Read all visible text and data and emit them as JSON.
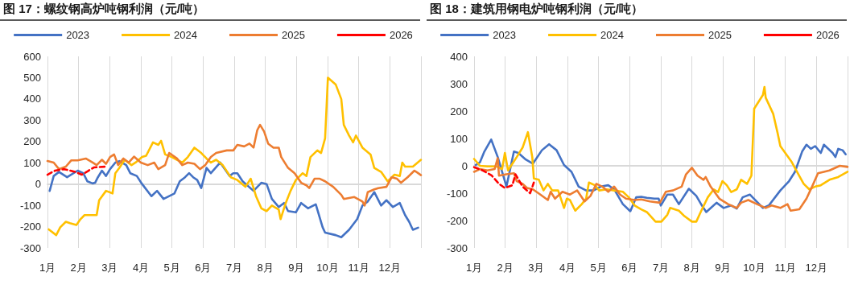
{
  "chart_data": [
    {
      "type": "line",
      "title": "图 17：螺纹钢高炉吨钢利润（元/吨）",
      "xlim": [
        1,
        13
      ],
      "xticks": [
        {
          "value": 1,
          "label": "1月"
        },
        {
          "value": 2,
          "label": "2月"
        },
        {
          "value": 3,
          "label": "3月"
        },
        {
          "value": 4,
          "label": "4月"
        },
        {
          "value": 5,
          "label": "5月"
        },
        {
          "value": 6,
          "label": "6月"
        },
        {
          "value": 7,
          "label": "7月"
        },
        {
          "value": 8,
          "label": "8月"
        },
        {
          "value": 9,
          "label": "9月"
        },
        {
          "value": 10,
          "label": "10月"
        },
        {
          "value": 11,
          "label": "11月"
        },
        {
          "value": 12,
          "label": "12月"
        },
        {
          "value": 13,
          "label": null
        }
      ],
      "ylim": [
        -300,
        600
      ],
      "yticks": [
        -300,
        -200,
        -100,
        0,
        100,
        200,
        300,
        400,
        500,
        600
      ],
      "grid": "x",
      "legend": "top",
      "marker": "none",
      "line_style": "solid",
      "series": [
        {
          "name": "2023",
          "color": "#4472c4",
          "x": [
            1.07,
            1.2,
            1.37,
            1.63,
            1.97,
            2.15,
            2.28,
            2.45,
            2.53,
            2.62,
            2.75,
            2.88,
            3.01,
            3.18,
            3.31,
            3.53,
            3.66,
            3.87,
            4.04,
            4.34,
            4.52,
            4.73,
            5.08,
            5.25,
            5.42,
            5.55,
            5.68,
            5.81,
            5.94,
            6.11,
            6.25,
            6.55,
            6.85,
            6.97,
            7.1,
            7.27,
            7.62,
            7.87,
            8.04,
            8.21,
            8.43,
            8.6,
            8.73,
            8.98,
            9.15,
            9.37,
            9.62,
            9.84,
            9.92,
            10.26,
            10.44,
            10.69,
            10.95,
            11.12,
            11.29,
            11.5,
            11.72,
            11.89,
            12.1,
            12.32,
            12.49,
            12.62,
            12.74,
            12.91
          ],
          "values": [
            -32,
            38,
            57,
            32,
            63,
            51,
            13,
            3,
            6,
            32,
            63,
            38,
            70,
            101,
            108,
            89,
            51,
            38,
            0,
            -57,
            -32,
            -70,
            -44,
            13,
            32,
            51,
            32,
            19,
            -19,
            76,
            51,
            101,
            38,
            51,
            51,
            13,
            -32,
            6,
            0,
            -70,
            -108,
            -89,
            -127,
            -133,
            -89,
            -114,
            -95,
            -203,
            -228,
            -240,
            -250,
            -215,
            -165,
            -101,
            -82,
            -38,
            -101,
            -76,
            -108,
            -89,
            -146,
            -177,
            -215,
            -205
          ]
        },
        {
          "name": "2024",
          "color": "#ffc000",
          "x": [
            1.04,
            1.28,
            1.41,
            1.59,
            1.72,
            1.93,
            2.06,
            2.19,
            2.58,
            2.66,
            2.88,
            3.09,
            3.18,
            3.31,
            3.48,
            3.7,
            3.83,
            4.04,
            4.17,
            4.39,
            4.56,
            4.65,
            4.78,
            4.99,
            5.16,
            5.33,
            5.51,
            5.72,
            5.94,
            6.11,
            6.25,
            6.42,
            6.63,
            6.89,
            7.1,
            7.36,
            7.53,
            7.7,
            7.87,
            8.04,
            8.21,
            8.43,
            8.49,
            8.64,
            8.81,
            8.98,
            9.2,
            9.32,
            9.45,
            9.67,
            9.79,
            9.92,
            10.01,
            10.26,
            10.44,
            10.52,
            10.69,
            10.82,
            10.91,
            11.12,
            11.38,
            11.5,
            11.72,
            11.93,
            12.15,
            12.32,
            12.4,
            12.49,
            12.74,
            13.0
          ],
          "values": [
            -213,
            -240,
            -203,
            -177,
            -184,
            -192,
            -165,
            -146,
            -146,
            -76,
            -32,
            -44,
            51,
            76,
            114,
            89,
            101,
            127,
            133,
            196,
            184,
            203,
            139,
            127,
            114,
            101,
            127,
            171,
            146,
            120,
            101,
            114,
            89,
            32,
            19,
            -13,
            25,
            -57,
            -114,
            -127,
            -101,
            -120,
            -165,
            -95,
            -32,
            19,
            51,
            38,
            127,
            158,
            146,
            215,
            500,
            468,
            399,
            278,
            228,
            196,
            228,
            171,
            139,
            76,
            57,
            13,
            44,
            38,
            101,
            82,
            82,
            114
          ]
        },
        {
          "name": "2025",
          "color": "#ed7d31",
          "x": [
            1,
            1.2,
            1.37,
            1.59,
            1.76,
            1.97,
            2.23,
            2.45,
            2.58,
            2.75,
            2.88,
            3.01,
            3.14,
            3.27,
            3.44,
            3.61,
            3.78,
            4.0,
            4.22,
            4.43,
            4.56,
            4.78,
            4.91,
            5.16,
            5.33,
            5.51,
            5.72,
            5.9,
            6.07,
            6.25,
            6.42,
            6.76,
            6.97,
            7.1,
            7.32,
            7.49,
            7.62,
            7.74,
            7.83,
            7.96,
            8.09,
            8.26,
            8.43,
            8.51,
            8.73,
            8.94,
            9.15,
            9.32,
            9.41,
            9.58,
            9.75,
            9.92,
            10.18,
            10.44,
            10.52,
            10.86,
            11.12,
            11.19,
            11.29,
            11.5,
            11.63,
            11.89,
            12.06,
            12.23,
            12.36,
            12.57,
            12.79,
            12.91,
            13.0
          ],
          "values": [
            108,
            101,
            70,
            82,
            111,
            111,
            120,
            101,
            89,
            114,
            95,
            127,
            139,
            89,
            120,
            101,
            129,
            101,
            89,
            101,
            70,
            89,
            146,
            120,
            89,
            101,
            95,
            70,
            89,
            127,
            146,
            158,
            158,
            184,
            177,
            190,
            171,
            253,
            278,
            247,
            190,
            171,
            171,
            127,
            76,
            51,
            6,
            -6,
            -19,
            25,
            25,
            13,
            -13,
            -51,
            -70,
            -61,
            -82,
            -101,
            -38,
            -25,
            -19,
            -13,
            32,
            25,
            6,
            32,
            63,
            51,
            42
          ]
        },
        {
          "name": "2026",
          "color": "#ff0000",
          "line_style": "dashed",
          "x": [
            1,
            1.24,
            1.54,
            1.89,
            2.1,
            2.32,
            2.49,
            2.88
          ],
          "values": [
            44,
            63,
            70,
            57,
            44,
            63,
            78,
            82
          ]
        }
      ]
    },
    {
      "type": "line",
      "title": "图 18：建筑用钢电炉吨钢利润（元/吨）",
      "xlim": [
        1,
        13
      ],
      "xticks": [
        {
          "value": 1,
          "label": "1月"
        },
        {
          "value": 2,
          "label": "2月"
        },
        {
          "value": 3,
          "label": "3月"
        },
        {
          "value": 4,
          "label": "4月"
        },
        {
          "value": 5,
          "label": "5月"
        },
        {
          "value": 6,
          "label": "6月"
        },
        {
          "value": 7,
          "label": "7月"
        },
        {
          "value": 8,
          "label": "8月"
        },
        {
          "value": 9,
          "label": "9月"
        },
        {
          "value": 10,
          "label": "10月"
        },
        {
          "value": 11,
          "label": "11月"
        },
        {
          "value": 12,
          "label": "12月"
        },
        {
          "value": 13,
          "label": null
        }
      ],
      "ylim": [
        -300,
        400
      ],
      "yticks": [
        -300,
        -200,
        -100,
        0,
        100,
        200,
        300,
        400
      ],
      "grid": "x",
      "legend": "top",
      "marker": "none",
      "line_style": "solid",
      "series": [
        {
          "name": "2023",
          "color": "#4472c4",
          "x": [
            1.05,
            1.19,
            1.33,
            1.55,
            1.76,
            1.99,
            2.04,
            2.28,
            2.42,
            2.66,
            2.89,
            3.18,
            3.41,
            3.65,
            3.89,
            4.13,
            4.36,
            4.6,
            4.84,
            5.07,
            5.31,
            5.5,
            5.78,
            6.02,
            6.21,
            6.37,
            6.55,
            6.79,
            6.93,
            7.0,
            7.21,
            7.39,
            7.58,
            7.9,
            8.14,
            8.32,
            8.46,
            8.79,
            9.02,
            9.26,
            9.44,
            9.63,
            9.86,
            10.28,
            10.47,
            10.84,
            11.12,
            11.31,
            11.54,
            11.68,
            11.82,
            11.96,
            12.14,
            12.24,
            12.52,
            12.61,
            12.7,
            12.84,
            12.94
          ],
          "values": [
            3,
            13,
            52,
            96,
            32,
            -56,
            -76,
            52,
            47,
            23,
            8,
            57,
            79,
            57,
            3,
            -22,
            -76,
            -90,
            -90,
            -76,
            -71,
            -86,
            -140,
            -166,
            -115,
            -113,
            -117,
            -120,
            -120,
            -145,
            -105,
            -105,
            -140,
            -84,
            -110,
            -145,
            -169,
            -135,
            -154,
            -145,
            -156,
            -115,
            -105,
            -154,
            -145,
            -90,
            -56,
            -22,
            52,
            77,
            62,
            72,
            47,
            77,
            47,
            32,
            62,
            57,
            42
          ]
        },
        {
          "name": "2024",
          "color": "#ffc000",
          "x": [
            1,
            1.19,
            1.43,
            1.71,
            1.9,
            1.99,
            2.09,
            2.37,
            2.56,
            2.73,
            2.87,
            2.92,
            3.08,
            3.23,
            3.37,
            3.51,
            3.7,
            3.89,
            3.98,
            4.08,
            4.25,
            4.46,
            4.6,
            4.69,
            4.88,
            5.02,
            5.26,
            5.5,
            5.78,
            5.97,
            6.16,
            6.37,
            6.55,
            6.83,
            7.02,
            7.21,
            7.3,
            7.58,
            7.76,
            8.0,
            8.14,
            8.28,
            8.51,
            8.7,
            8.84,
            8.98,
            9.12,
            9.26,
            9.44,
            9.58,
            9.77,
            9.91,
            10.0,
            10.28,
            10.33,
            10.37,
            10.61,
            10.75,
            10.84,
            11.03,
            11.21,
            11.4,
            11.59,
            11.77,
            11.96,
            12.14,
            12.42,
            12.7,
            13.0
          ],
          "values": [
            25,
            0,
            -2,
            -2,
            -12,
            47,
            -17,
            32,
            67,
            123,
            32,
            -46,
            -51,
            -90,
            -66,
            -90,
            -90,
            -154,
            -120,
            -125,
            -164,
            -140,
            -120,
            -61,
            -71,
            -90,
            -86,
            -90,
            -95,
            -115,
            -145,
            -159,
            -169,
            -204,
            -204,
            -179,
            -154,
            -164,
            -184,
            -204,
            -204,
            -169,
            -115,
            -86,
            -96,
            -56,
            -71,
            -96,
            -86,
            -51,
            -66,
            -36,
            209,
            259,
            288,
            249,
            190,
            121,
            72,
            42,
            13,
            -27,
            -66,
            -86,
            -76,
            -71,
            -51,
            -41,
            -22
          ]
        },
        {
          "name": "2025",
          "color": "#ed7d31",
          "x": [
            1,
            1.19,
            1.43,
            1.66,
            1.76,
            1.8,
            2.04,
            2.28,
            2.37,
            2.56,
            2.7,
            2.89,
            3.13,
            3.37,
            3.46,
            3.6,
            3.84,
            4.08,
            4.31,
            4.55,
            4.74,
            4.93,
            5.12,
            5.31,
            5.5,
            5.69,
            5.88,
            6.16,
            6.37,
            6.65,
            6.97,
            7.16,
            7.39,
            7.67,
            7.81,
            8.0,
            8.18,
            8.37,
            8.44,
            8.6,
            8.88,
            9.16,
            9.44,
            9.58,
            9.81,
            10.09,
            10.37,
            10.56,
            10.84,
            11.07,
            11.17,
            11.45,
            11.68,
            11.86,
            12.05,
            12.24,
            12.42,
            12.75,
            13.0
          ],
          "values": [
            -22,
            -12,
            -17,
            -12,
            28,
            -36,
            -31,
            -27,
            -56,
            -66,
            -81,
            -86,
            -105,
            -125,
            -95,
            -120,
            -95,
            -105,
            -90,
            -130,
            -110,
            -66,
            -76,
            -95,
            -76,
            -105,
            -120,
            -125,
            -123,
            -130,
            -135,
            -95,
            -90,
            -76,
            -31,
            -7,
            -36,
            -51,
            -41,
            -76,
            -120,
            -140,
            -154,
            -135,
            -125,
            -140,
            -154,
            -145,
            -154,
            -140,
            -164,
            -159,
            -120,
            -76,
            -27,
            -22,
            -17,
            0,
            -4
          ]
        },
        {
          "name": "2026",
          "color": "#ff0000",
          "line_style": "dashed",
          "x": [
            1,
            1.28,
            1.57,
            1.8,
            1.99,
            2.23,
            2.33,
            2.56,
            2.8,
            2.92
          ],
          "values": [
            -5,
            -17,
            -36,
            -66,
            -81,
            -71,
            -31,
            -76,
            -100,
            -61
          ]
        }
      ]
    }
  ]
}
